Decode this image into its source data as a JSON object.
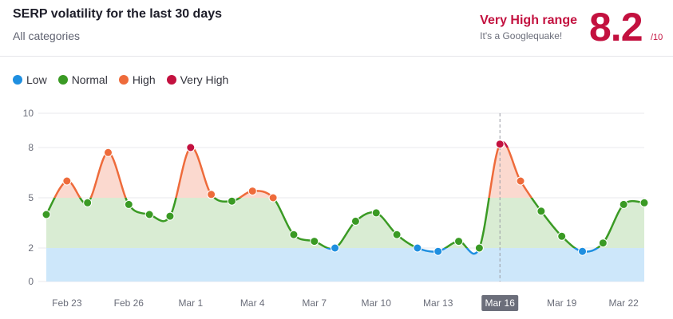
{
  "header": {
    "title": "SERP volatility for the last 30 days",
    "subtitle": "All categories",
    "range_title": "Very High range",
    "range_subtitle": "It's a Googlequake!",
    "score": "8.2",
    "score_max": "/10"
  },
  "colors": {
    "low": "#1f8fe0",
    "normal": "#3a9a24",
    "high": "#ee6b3b",
    "very_high": "#c3113f",
    "band_low": "#cde7fa",
    "band_normal": "#d9ecd3",
    "band_high": "#fbd9cf",
    "score": "#c3113f"
  },
  "chart_data": {
    "type": "line",
    "legend": [
      {
        "key": "low",
        "label": "Low"
      },
      {
        "key": "normal",
        "label": "Normal"
      },
      {
        "key": "high",
        "label": "High"
      },
      {
        "key": "very_high",
        "label": "Very High"
      }
    ],
    "y_ticks": [
      0,
      2,
      5,
      8,
      10
    ],
    "ylim": [
      0,
      10
    ],
    "x_ticks": [
      "Feb 23",
      "Feb 26",
      "Mar 1",
      "Mar 4",
      "Mar 7",
      "Mar 10",
      "Mar 13",
      "Mar 16",
      "Mar 19",
      "Mar 22"
    ],
    "selected_tick": "Mar 16",
    "bands": [
      {
        "key": "low",
        "from": 0,
        "to": 2
      },
      {
        "key": "normal",
        "from": 2,
        "to": 5
      },
      {
        "key": "high",
        "from": 5,
        "to": 10
      }
    ],
    "x": [
      "Feb 22",
      "Feb 23",
      "Feb 24",
      "Feb 25",
      "Feb 26",
      "Feb 27",
      "Feb 28",
      "Mar 1",
      "Mar 2",
      "Mar 3",
      "Mar 4",
      "Mar 5",
      "Mar 6",
      "Mar 7",
      "Mar 8",
      "Mar 9",
      "Mar 10",
      "Mar 11",
      "Mar 12",
      "Mar 13",
      "Mar 14",
      "Mar 15",
      "Mar 16",
      "Mar 17",
      "Mar 18",
      "Mar 19",
      "Mar 20",
      "Mar 21",
      "Mar 22",
      "Mar 23"
    ],
    "values": [
      4.0,
      6.0,
      4.7,
      7.7,
      4.6,
      4.0,
      3.9,
      8.0,
      5.2,
      4.8,
      5.4,
      5.0,
      2.8,
      2.4,
      2.0,
      3.6,
      4.1,
      2.8,
      2.0,
      1.8,
      2.4,
      2.0,
      8.2,
      6.0,
      4.2,
      2.7,
      1.8,
      2.3,
      4.6,
      4.7
    ],
    "levels": [
      "normal",
      "high",
      "normal",
      "high",
      "normal",
      "normal",
      "normal",
      "very_high",
      "high",
      "normal",
      "high",
      "high",
      "normal",
      "normal",
      "low",
      "normal",
      "normal",
      "normal",
      "low",
      "low",
      "normal",
      "normal",
      "very_high",
      "high",
      "normal",
      "normal",
      "low",
      "normal",
      "normal",
      "normal"
    ]
  }
}
